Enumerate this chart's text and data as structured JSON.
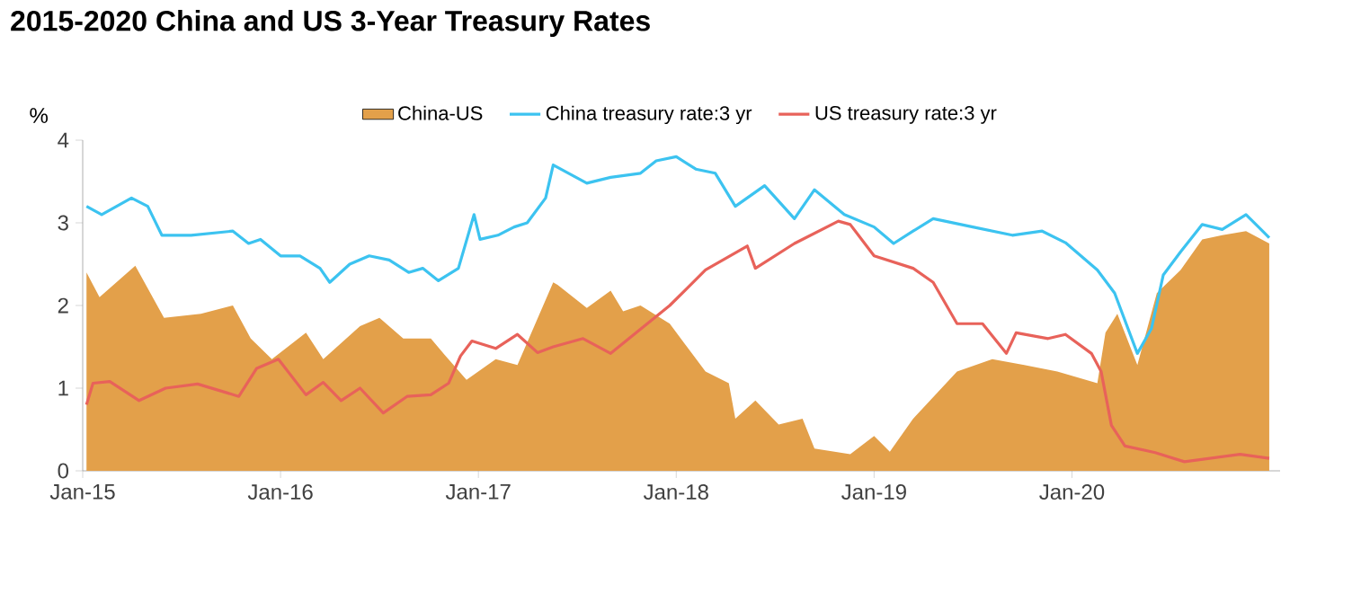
{
  "chart_data": {
    "type": "line",
    "title": "2015-2020 China and US 3-Year Treasury Rates",
    "ylabel": "%",
    "xlim": [
      "2015-01-01",
      "2021-01-20"
    ],
    "ylim": [
      0,
      4
    ],
    "yticks": [
      0,
      1,
      2,
      3,
      4
    ],
    "xticks": [
      {
        "value": "2015-01-01",
        "label": "Jan-15"
      },
      {
        "value": "2016-01-01",
        "label": "Jan-16"
      },
      {
        "value": "2017-01-01",
        "label": "Jan-17"
      },
      {
        "value": "2018-01-01",
        "label": "Jan-18"
      },
      {
        "value": "2019-01-01",
        "label": "Jan-19"
      },
      {
        "value": "2020-01-01",
        "label": "Jan-20"
      }
    ],
    "grid": false,
    "legend": "top",
    "marker": "none",
    "line_style": "solid",
    "series": [
      {
        "name": "China-US",
        "type": "area",
        "color": "#e3a04a",
        "x": [
          "2015-01-08",
          "2015-02-01",
          "2015-04-08",
          "2015-05-31",
          "2015-08-07",
          "2015-10-05",
          "2015-11-07",
          "2015-12-16",
          "2016-02-17",
          "2016-03-20",
          "2016-05-27",
          "2016-07-02",
          "2016-08-15",
          "2016-10-05",
          "2016-10-31",
          "2016-12-10",
          "2017-02-02",
          "2017-03-14",
          "2017-05-19",
          "2017-05-27",
          "2017-07-20",
          "2017-09-02",
          "2017-09-25",
          "2017-10-27",
          "2017-12-20",
          "2018-02-24",
          "2018-04-08",
          "2018-04-20",
          "2018-05-27",
          "2018-07-09",
          "2018-08-22",
          "2018-09-13",
          "2018-11-18",
          "2019-01-01",
          "2019-01-30",
          "2019-03-14",
          "2019-06-03",
          "2019-08-07",
          "2019-10-05",
          "2019-12-05",
          "2020-02-17",
          "2020-03-03",
          "2020-03-25",
          "2020-05-01",
          "2020-06-06",
          "2020-07-20",
          "2020-08-29",
          "2020-10-05",
          "2020-11-18",
          "2020-12-31"
        ],
        "values": [
          2.4,
          2.1,
          2.48,
          1.85,
          1.9,
          2.0,
          1.6,
          1.35,
          1.67,
          1.35,
          1.75,
          1.85,
          1.6,
          1.6,
          1.4,
          1.1,
          1.35,
          1.28,
          2.28,
          2.25,
          1.97,
          2.18,
          1.93,
          2.0,
          1.78,
          1.2,
          1.06,
          0.63,
          0.85,
          0.56,
          0.63,
          0.27,
          0.2,
          0.42,
          0.23,
          0.63,
          1.2,
          1.35,
          1.28,
          1.2,
          1.06,
          1.67,
          1.9,
          1.28,
          2.15,
          2.43,
          2.8,
          2.85,
          2.9,
          2.75
        ]
      },
      {
        "name": "China treasury rate:3 yr",
        "type": "line",
        "color": "#3cc3f0",
        "x": [
          "2015-01-08",
          "2015-02-05",
          "2015-04-01",
          "2015-05-01",
          "2015-05-27",
          "2015-07-20",
          "2015-10-05",
          "2015-11-03",
          "2015-11-25",
          "2016-01-01",
          "2016-02-06",
          "2016-03-14",
          "2016-04-01",
          "2016-05-08",
          "2016-06-13",
          "2016-07-20",
          "2016-08-25",
          "2016-09-20",
          "2016-10-19",
          "2016-11-25",
          "2016-12-24",
          "2017-01-04",
          "2017-02-06",
          "2017-03-08",
          "2017-04-01",
          "2017-05-05",
          "2017-05-19",
          "2017-07-20",
          "2017-09-02",
          "2017-10-27",
          "2017-11-25",
          "2018-01-01",
          "2018-02-06",
          "2018-03-14",
          "2018-04-20",
          "2018-06-13",
          "2018-08-07",
          "2018-09-13",
          "2018-11-07",
          "2019-01-01",
          "2019-02-06",
          "2019-03-14",
          "2019-04-20",
          "2019-07-02",
          "2019-09-13",
          "2019-11-07",
          "2019-12-20",
          "2020-02-17",
          "2020-03-20",
          "2020-05-01",
          "2020-05-27",
          "2020-06-18",
          "2020-07-20",
          "2020-08-29",
          "2020-10-05",
          "2020-11-18",
          "2020-12-31"
        ],
        "values": [
          3.2,
          3.1,
          3.3,
          3.2,
          2.85,
          2.85,
          2.9,
          2.75,
          2.8,
          2.6,
          2.6,
          2.45,
          2.28,
          2.5,
          2.6,
          2.55,
          2.4,
          2.45,
          2.3,
          2.45,
          3.1,
          2.8,
          2.85,
          2.95,
          3.0,
          3.3,
          3.7,
          3.48,
          3.55,
          3.6,
          3.75,
          3.8,
          3.65,
          3.6,
          3.2,
          3.45,
          3.05,
          3.4,
          3.1,
          2.95,
          2.75,
          2.9,
          3.05,
          2.95,
          2.85,
          2.9,
          2.76,
          2.43,
          2.15,
          1.42,
          1.72,
          2.37,
          2.65,
          2.98,
          2.92,
          3.1,
          2.82
        ]
      },
      {
        "name": "US treasury rate:3 yr",
        "type": "line",
        "color": "#e8625a",
        "x": [
          "2015-01-08",
          "2015-01-20",
          "2015-02-20",
          "2015-04-15",
          "2015-06-03",
          "2015-08-01",
          "2015-10-16",
          "2015-11-18",
          "2015-12-28",
          "2016-02-17",
          "2016-03-20",
          "2016-04-22",
          "2016-05-27",
          "2016-07-09",
          "2016-08-22",
          "2016-10-05",
          "2016-11-07",
          "2016-11-29",
          "2016-12-20",
          "2017-02-02",
          "2017-03-14",
          "2017-04-20",
          "2017-05-19",
          "2017-07-13",
          "2017-09-02",
          "2017-12-20",
          "2018-02-24",
          "2018-05-12",
          "2018-05-27",
          "2018-08-07",
          "2018-10-27",
          "2018-11-18",
          "2019-01-01",
          "2019-03-14",
          "2019-04-20",
          "2019-06-03",
          "2019-07-20",
          "2019-09-02",
          "2019-09-20",
          "2019-11-18",
          "2019-12-20",
          "2020-02-06",
          "2020-02-24",
          "2020-03-14",
          "2020-04-08",
          "2020-06-03",
          "2020-07-27",
          "2020-11-07",
          "2020-12-31"
        ],
        "values": [
          0.8,
          1.06,
          1.08,
          0.85,
          1.0,
          1.05,
          0.9,
          1.24,
          1.35,
          0.92,
          1.07,
          0.85,
          1.0,
          0.7,
          0.9,
          0.92,
          1.06,
          1.39,
          1.57,
          1.48,
          1.65,
          1.43,
          1.5,
          1.6,
          1.42,
          2.0,
          2.43,
          2.72,
          2.45,
          2.75,
          3.02,
          2.98,
          2.6,
          2.45,
          2.28,
          1.78,
          1.78,
          1.42,
          1.67,
          1.6,
          1.65,
          1.42,
          1.2,
          0.55,
          0.3,
          0.22,
          0.11,
          0.2,
          0.15
        ]
      }
    ]
  }
}
